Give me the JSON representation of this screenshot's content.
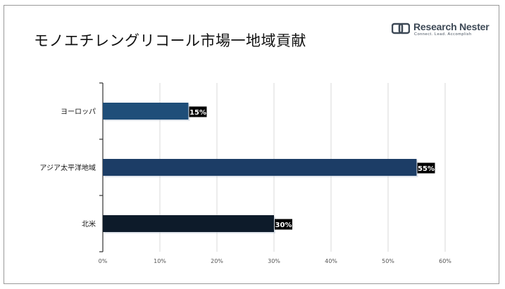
{
  "title": "モノエチレングリコール市場一地域貢献",
  "logo": {
    "name": "Research Nester",
    "tagline": "Connect. Lead. Accomplish"
  },
  "colors": {
    "grid": "#d9d9d9",
    "axis": "#333333",
    "label_bg": "#000000",
    "label_text": "#ffffff"
  },
  "chart_data": {
    "type": "bar",
    "orientation": "horizontal",
    "categories": [
      "ヨーロッパ",
      "アジア太平洋地域",
      "北米"
    ],
    "values": [
      15,
      55,
      30
    ],
    "value_labels": [
      "15%",
      "55%",
      "30%"
    ],
    "bar_colors": [
      "#1f4e79",
      "#1c3d66",
      "#0d1b2a"
    ],
    "xlim": [
      0,
      60
    ],
    "xticks": [
      "0%",
      "10%",
      "20%",
      "30%",
      "40%",
      "50%",
      "60%"
    ],
    "grid": true,
    "legend": "none"
  }
}
